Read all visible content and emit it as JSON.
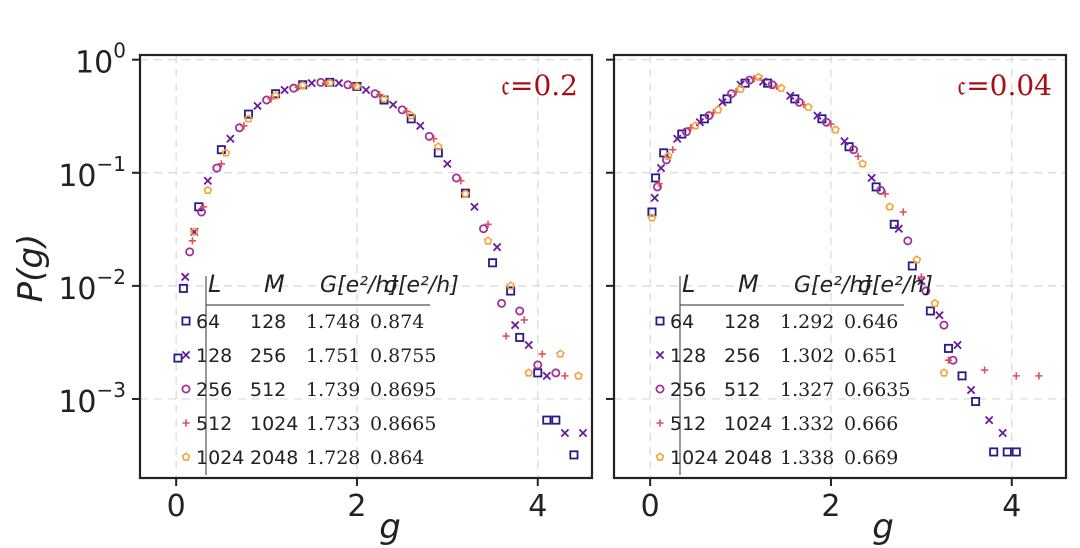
{
  "figure": {
    "ylabel": "P(g)",
    "xlabel": "g",
    "legend_headers": [
      "L",
      "M",
      "G[e²/h]",
      "σ[e²/h]"
    ],
    "colors": {
      "axis": "#222222",
      "grid": "#d9d9d9",
      "annotation": "#a50f15",
      "series": [
        "#2a1b8a",
        "#6a1a9c",
        "#a0319a",
        "#e0505a",
        "#f5a23a"
      ]
    },
    "markers": [
      "square",
      "x",
      "circle",
      "plus",
      "pentagon"
    ]
  },
  "chart_data": [
    {
      "type": "scatter",
      "annotation": "𝔠=0.2",
      "xlim": [
        -0.4,
        4.6
      ],
      "ylim": [
        0.0002,
        1.1
      ],
      "yscale": "log",
      "xticks": [
        0,
        2,
        4
      ],
      "yticks": [
        0.001,
        0.01,
        0.1,
        1
      ],
      "ytick_labels": [
        [
          "10",
          "−3"
        ],
        [
          "10",
          "−2"
        ],
        [
          "10",
          "−1"
        ],
        [
          "10",
          "0"
        ]
      ],
      "grid": true,
      "legend_position": "lower-left",
      "legend": [
        {
          "L": "64",
          "M": "128",
          "G": "1.748",
          "sigma": "0.874"
        },
        {
          "L": "128",
          "M": "256",
          "G": "1.751",
          "sigma": "0.8755"
        },
        {
          "L": "256",
          "M": "512",
          "G": "1.739",
          "sigma": "0.8695"
        },
        {
          "L": "512",
          "M": "1024",
          "G": "1.733",
          "sigma": "0.8665"
        },
        {
          "L": "1024",
          "M": "2048",
          "G": "1.728",
          "sigma": "0.864"
        }
      ],
      "series": [
        {
          "name": "64",
          "x": [
            0.02,
            0.08,
            0.25,
            0.5,
            0.8,
            1.1,
            1.4,
            1.7,
            2.0,
            2.3,
            2.6,
            2.9,
            3.2,
            3.5,
            3.7,
            3.8,
            4.0,
            4.1,
            4.2,
            4.4
          ],
          "y": [
            0.0023,
            0.0095,
            0.05,
            0.16,
            0.33,
            0.5,
            0.6,
            0.63,
            0.58,
            0.44,
            0.3,
            0.15,
            0.066,
            0.016,
            0.009,
            0.0035,
            0.0017,
            0.00065,
            0.00065,
            0.00032
          ]
        },
        {
          "name": "128",
          "x": [
            0.1,
            0.2,
            0.35,
            0.6,
            0.9,
            1.2,
            1.5,
            1.8,
            2.1,
            2.4,
            2.7,
            3.0,
            3.3,
            3.55,
            3.75,
            3.9,
            4.1,
            4.3,
            4.5
          ],
          "y": [
            0.012,
            0.03,
            0.085,
            0.2,
            0.39,
            0.54,
            0.62,
            0.62,
            0.54,
            0.4,
            0.26,
            0.12,
            0.05,
            0.022,
            0.0045,
            0.003,
            0.0016,
            0.0005,
            0.0005
          ]
        },
        {
          "name": "256",
          "x": [
            0.15,
            0.28,
            0.45,
            0.7,
            1.0,
            1.3,
            1.6,
            1.9,
            2.2,
            2.5,
            2.8,
            3.1,
            3.4,
            3.6,
            3.8,
            4.0,
            4.2
          ],
          "y": [
            0.02,
            0.045,
            0.11,
            0.25,
            0.44,
            0.56,
            0.63,
            0.6,
            0.5,
            0.36,
            0.21,
            0.09,
            0.032,
            0.007,
            0.006,
            0.002,
            0.0017
          ]
        },
        {
          "name": "512",
          "x": [
            0.18,
            0.3,
            0.5,
            0.75,
            1.05,
            1.35,
            1.65,
            1.95,
            2.25,
            2.55,
            2.85,
            3.15,
            3.45,
            3.65,
            3.85,
            4.05,
            4.3
          ],
          "y": [
            0.025,
            0.05,
            0.12,
            0.26,
            0.45,
            0.57,
            0.62,
            0.59,
            0.49,
            0.35,
            0.2,
            0.085,
            0.035,
            0.0036,
            0.005,
            0.0025,
            0.0016
          ]
        },
        {
          "name": "1024",
          "x": [
            0.2,
            0.35,
            0.55,
            0.8,
            1.1,
            1.4,
            1.7,
            2.0,
            2.3,
            2.6,
            2.9,
            3.2,
            3.45,
            3.7,
            3.9,
            4.25,
            4.45
          ],
          "y": [
            0.03,
            0.07,
            0.15,
            0.3,
            0.48,
            0.59,
            0.62,
            0.58,
            0.45,
            0.32,
            0.17,
            0.065,
            0.025,
            0.01,
            0.0017,
            0.0025,
            0.0016
          ]
        }
      ]
    },
    {
      "type": "scatter",
      "annotation": "𝔠=0.04",
      "xlim": [
        -0.4,
        4.6
      ],
      "ylim": [
        0.0002,
        1.1
      ],
      "yscale": "log",
      "xticks": [
        0,
        2,
        4
      ],
      "yticks": [
        0.001,
        0.01,
        0.1,
        1
      ],
      "grid": true,
      "legend_position": "lower-left",
      "legend": [
        {
          "L": "64",
          "M": "128",
          "G": "1.292",
          "sigma": "0.646"
        },
        {
          "L": "128",
          "M": "256",
          "G": "1.302",
          "sigma": "0.651"
        },
        {
          "L": "256",
          "M": "512",
          "G": "1.327",
          "sigma": "0.6635"
        },
        {
          "L": "512",
          "M": "1024",
          "G": "1.332",
          "sigma": "0.666"
        },
        {
          "L": "1024",
          "M": "2048",
          "G": "1.338",
          "sigma": "0.669"
        }
      ],
      "series": [
        {
          "name": "64",
          "x": [
            0.02,
            0.06,
            0.15,
            0.35,
            0.6,
            0.85,
            1.05,
            1.3,
            1.6,
            1.9,
            2.2,
            2.5,
            2.7,
            2.9,
            3.1,
            3.3,
            3.45,
            3.6,
            3.8,
            3.95,
            4.05
          ],
          "y": [
            0.045,
            0.09,
            0.15,
            0.22,
            0.3,
            0.45,
            0.62,
            0.62,
            0.45,
            0.3,
            0.17,
            0.075,
            0.035,
            0.015,
            0.006,
            0.0028,
            0.0016,
            0.00095,
            0.00034,
            0.00034,
            0.00034
          ]
        },
        {
          "name": "128",
          "x": [
            0.05,
            0.12,
            0.3,
            0.55,
            0.8,
            1.0,
            1.25,
            1.55,
            1.85,
            2.15,
            2.45,
            2.75,
            3.0,
            3.2,
            3.4,
            3.55,
            3.75,
            3.9
          ],
          "y": [
            0.06,
            0.11,
            0.2,
            0.28,
            0.42,
            0.6,
            0.64,
            0.48,
            0.32,
            0.19,
            0.09,
            0.032,
            0.011,
            0.0055,
            0.003,
            0.0012,
            0.00065,
            0.0005
          ]
        },
        {
          "name": "256",
          "x": [
            0.08,
            0.18,
            0.4,
            0.65,
            0.9,
            1.1,
            1.35,
            1.65,
            1.95,
            2.25,
            2.55,
            2.85,
            3.05,
            3.25,
            3.35
          ],
          "y": [
            0.075,
            0.13,
            0.23,
            0.32,
            0.5,
            0.66,
            0.6,
            0.42,
            0.28,
            0.16,
            0.07,
            0.025,
            0.009,
            0.0045,
            0.0022
          ]
        },
        {
          "name": "512",
          "x": [
            0.1,
            0.25,
            0.45,
            0.7,
            0.95,
            1.15,
            1.4,
            1.7,
            2.0,
            2.3,
            2.6,
            2.8,
            3.0,
            3.3,
            3.7,
            4.05,
            4.3
          ],
          "y": [
            0.08,
            0.16,
            0.25,
            0.34,
            0.52,
            0.68,
            0.58,
            0.4,
            0.27,
            0.14,
            0.065,
            0.045,
            0.012,
            0.0022,
            0.0018,
            0.0016,
            0.0016
          ]
        },
        {
          "name": "1024",
          "x": [
            0.02,
            0.2,
            0.5,
            0.75,
            1.0,
            1.2,
            1.45,
            1.75,
            2.05,
            2.35,
            2.65,
            2.95,
            3.15,
            3.25
          ],
          "y": [
            0.04,
            0.14,
            0.26,
            0.36,
            0.55,
            0.7,
            0.56,
            0.38,
            0.24,
            0.12,
            0.05,
            0.017,
            0.007,
            0.0017
          ]
        }
      ]
    }
  ]
}
